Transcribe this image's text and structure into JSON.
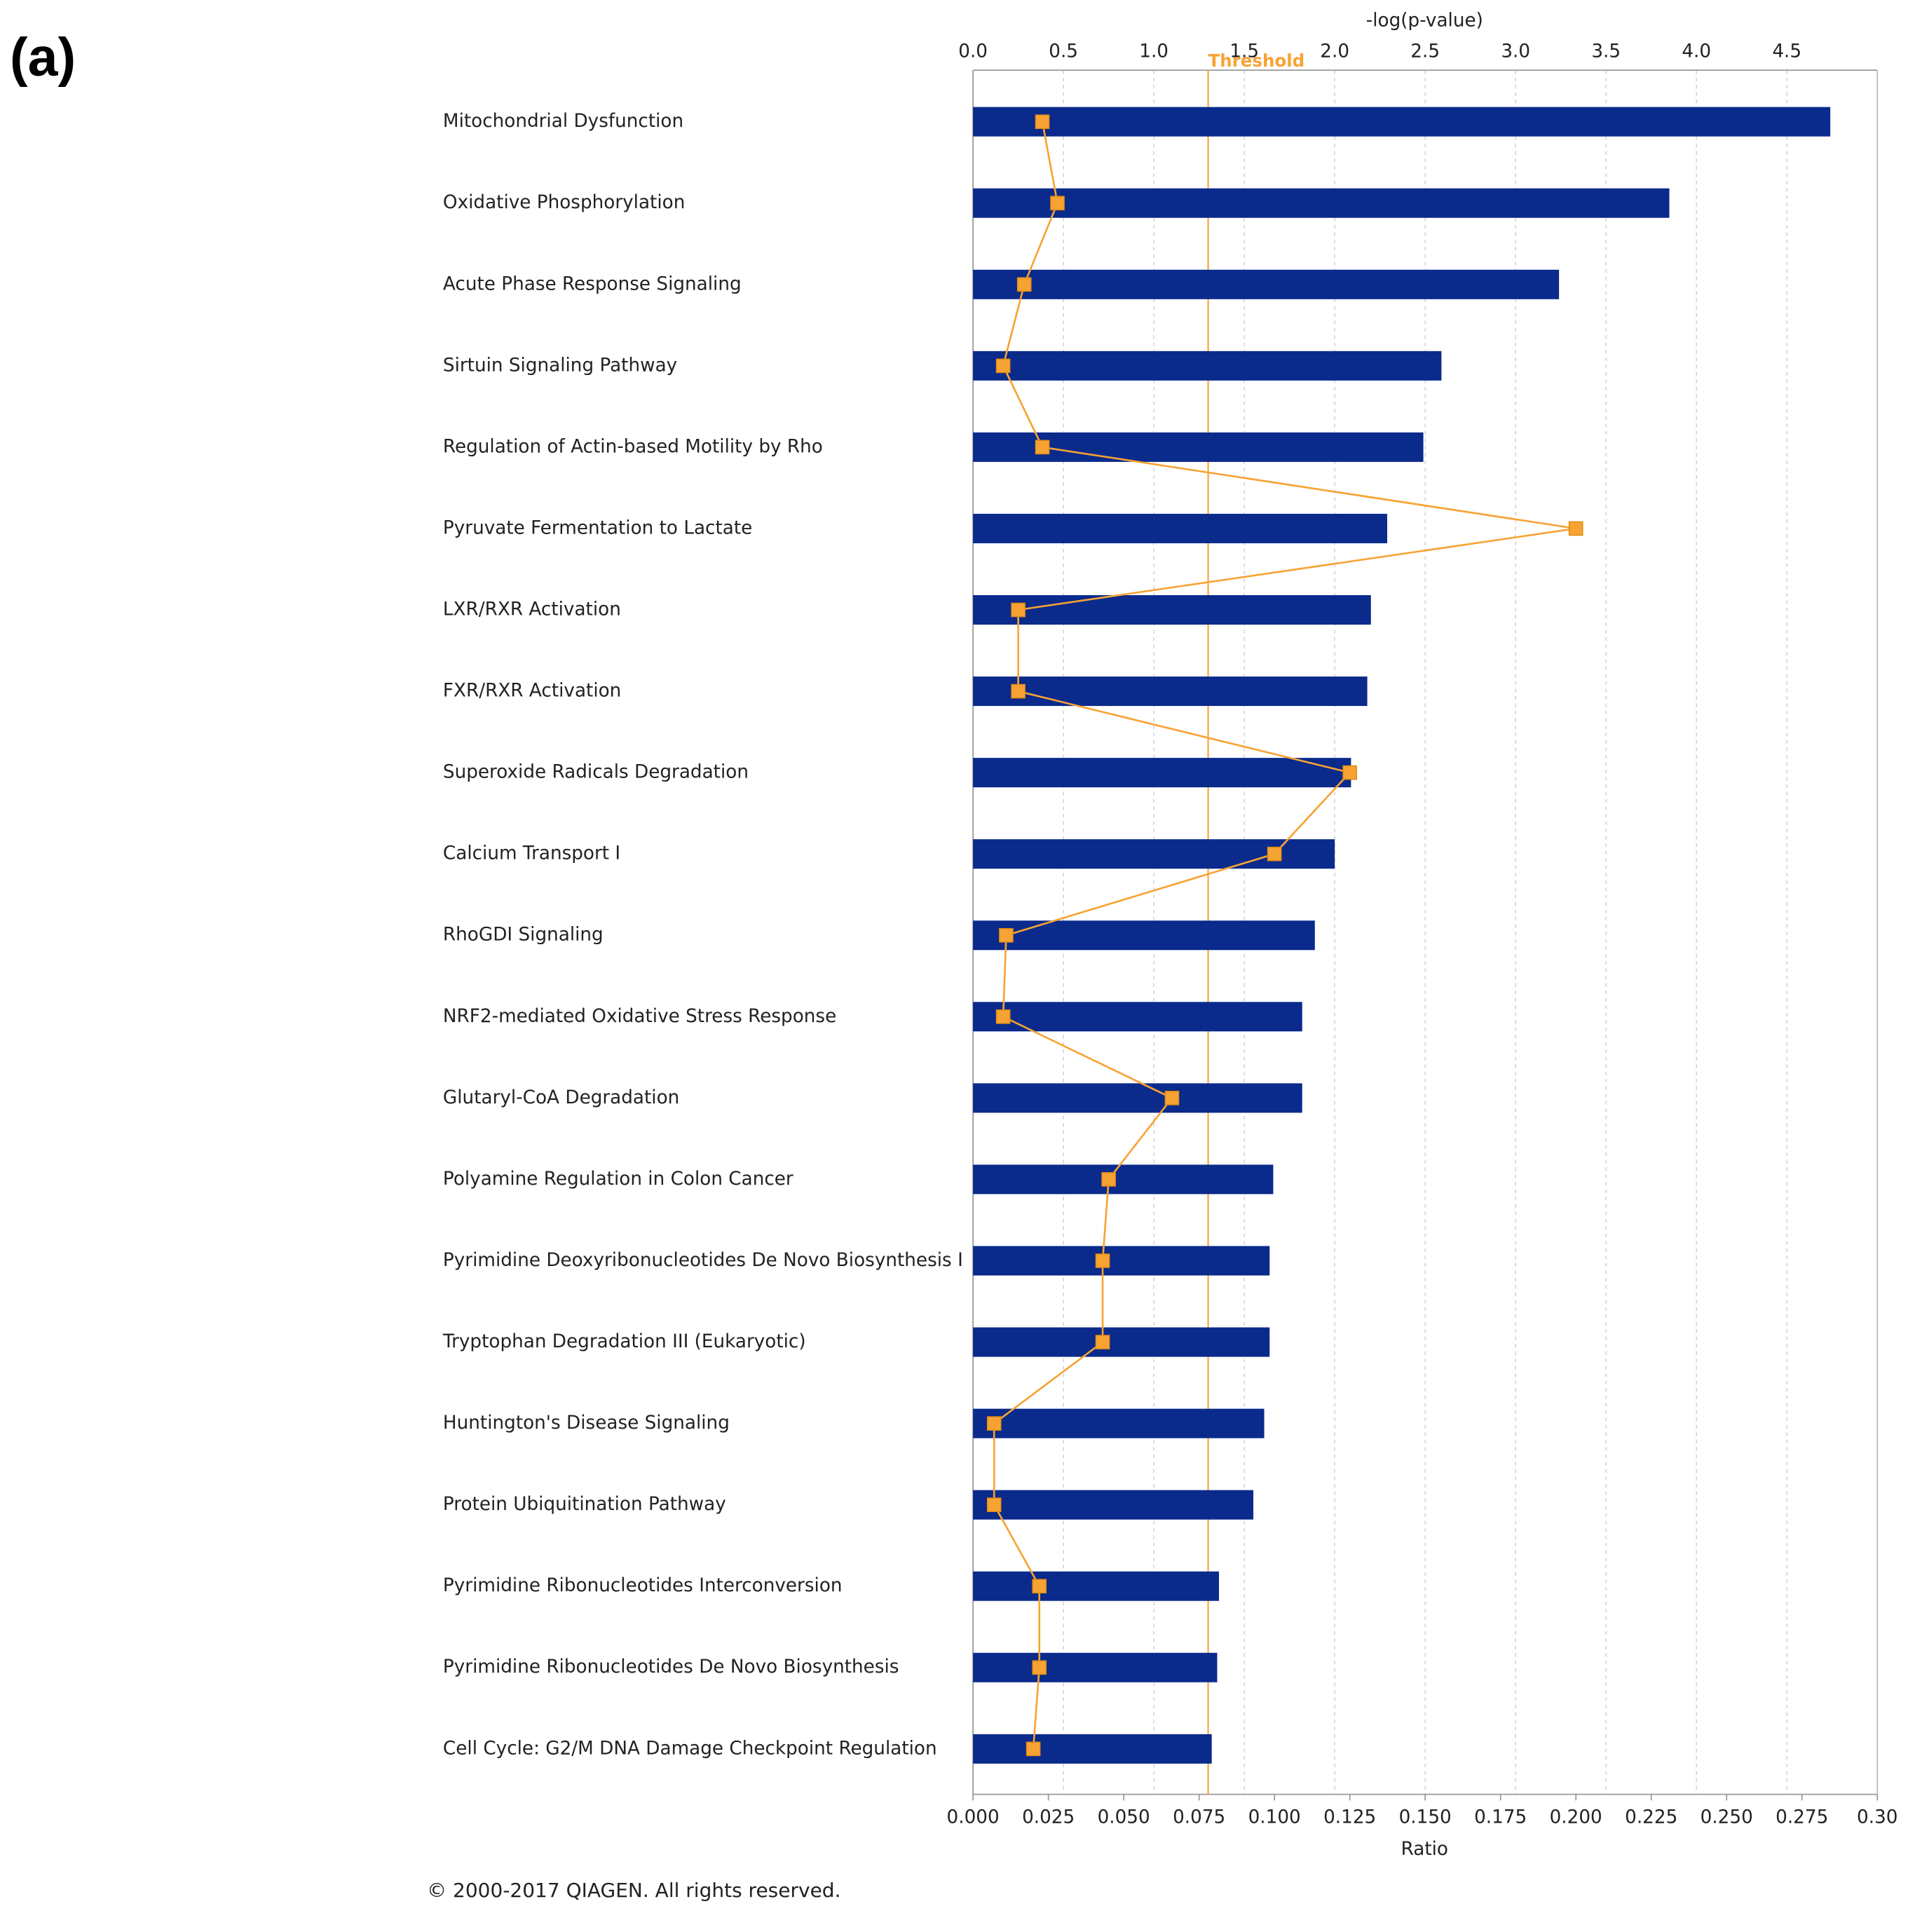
{
  "panel_label": "(a)",
  "copyright": "© 2000-2017 QIAGEN. All rights reserved.",
  "chart_data": {
    "type": "bar",
    "orientation": "horizontal",
    "xlabel": "-log(p-value)",
    "x2label": "Ratio",
    "categories": [
      "Mitochondrial Dysfunction",
      "Oxidative Phosphorylation",
      "Acute Phase Response Signaling",
      "Sirtuin Signaling Pathway",
      "Regulation of Actin-based Motility by Rho",
      "Pyruvate Fermentation to Lactate",
      "LXR/RXR Activation",
      "FXR/RXR Activation",
      "Superoxide Radicals Degradation",
      "Calcium Transport I",
      "RhoGDI Signaling",
      "NRF2-mediated Oxidative Stress Response",
      "Glutaryl-CoA Degradation",
      "Polyamine Regulation in Colon Cancer",
      "Pyrimidine Deoxyribonucleotides De Novo Biosynthesis I",
      "Tryptophan Degradation III (Eukaryotic)",
      "Huntington's Disease Signaling",
      "Protein Ubiquitination Pathway",
      "Pyrimidine Ribonucleotides Interconversion",
      "Pyrimidine Ribonucleotides De Novo Biosynthesis",
      "Cell Cycle: G2/M DNA Damage Checkpoint Regulation"
    ],
    "series": [
      {
        "type": "bar",
        "axis": "x",
        "color": "#0a2a8c",
        "values": [
          4.74,
          3.85,
          3.24,
          2.59,
          2.49,
          2.29,
          2.2,
          2.18,
          2.09,
          2.0,
          1.89,
          1.82,
          1.82,
          1.66,
          1.64,
          1.64,
          1.61,
          1.55,
          1.36,
          1.35,
          1.32
        ]
      },
      {
        "type": "line",
        "axis": "x2",
        "color": "#f7a334",
        "values": [
          0.023,
          0.028,
          0.017,
          0.01,
          0.023,
          0.2,
          0.015,
          0.015,
          0.125,
          0.1,
          0.011,
          0.01,
          0.066,
          0.045,
          0.043,
          0.043,
          0.007,
          0.007,
          0.022,
          0.022,
          0.02
        ]
      }
    ],
    "xlim": [
      0,
      5
    ],
    "xticks": [
      {
        "value": 0,
        "label": "0.0"
      },
      0.5,
      {
        "value": 1,
        "label": "1.0"
      },
      1.5,
      {
        "value": 2,
        "label": "2.0"
      },
      2.5,
      {
        "value": 3,
        "label": "3.0"
      },
      3.5,
      {
        "value": 4,
        "label": "4.0"
      },
      4.5
    ],
    "x2lim": [
      0,
      0.3
    ],
    "x2ticks": [
      {
        "value": 0,
        "label": "0.000"
      },
      0.025,
      {
        "value": 0.05,
        "label": "0.050"
      },
      0.075,
      {
        "value": 0.1,
        "label": "0.100"
      },
      0.125,
      {
        "value": 0.15,
        "label": "0.150"
      },
      0.175,
      {
        "value": 0.2,
        "label": "0.200"
      },
      0.225,
      {
        "value": 0.25,
        "label": "0.250"
      },
      0.275,
      {
        "value": 0.3,
        "label": "0.30"
      }
    ],
    "threshold": {
      "value": 1.3,
      "label": "Threshold",
      "color": "#f7a334"
    },
    "grid": true
  }
}
